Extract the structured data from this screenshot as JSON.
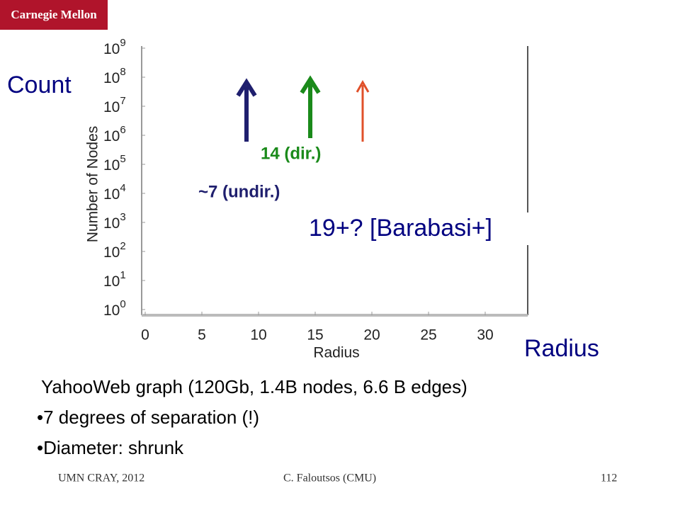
{
  "header": {
    "logo": "Carnegie Mellon"
  },
  "chart_data": {
    "type": "empty",
    "xlabel": "Radius",
    "ylabel": "Number of Nodes",
    "xlim": [
      0,
      34
    ],
    "xticks": [
      0,
      5,
      10,
      15,
      20,
      25,
      30
    ],
    "ylim": [
      1,
      1000000000
    ],
    "ylog": true,
    "yticks": [
      {
        "value": 1,
        "label": "10^0"
      },
      {
        "value": 10,
        "label": "10^1"
      },
      {
        "value": 100,
        "label": "10^2"
      },
      {
        "value": 1000,
        "label": "10^3"
      },
      {
        "value": 10000,
        "label": "10^4"
      },
      {
        "value": 100000,
        "label": "10^5"
      },
      {
        "value": 1000000,
        "label": "10^6"
      },
      {
        "value": 10000000,
        "label": "10^7"
      },
      {
        "value": 100000000,
        "label": "10^8"
      },
      {
        "value": 1000000000,
        "label": "10^9"
      }
    ],
    "annotations": [
      "14 (dir.)",
      "~7 (undir.)",
      "19+? [Barabasi+]"
    ]
  },
  "labels": {
    "y": "Count",
    "x": "Radius"
  },
  "body": {
    "lines": [
      "YahooWeb graph  (120Gb, 1.4B nodes, 6.6 B edges)",
      "•7 degrees of separation  (!)",
      "•Diameter: shrunk"
    ]
  },
  "footer": {
    "left": "UMN CRAY, 2012",
    "center": "C. Faloutsos (CMU)",
    "page": "112"
  }
}
